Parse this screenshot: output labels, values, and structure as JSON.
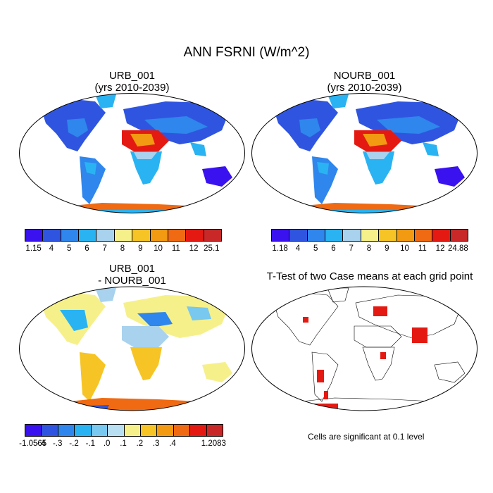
{
  "title": "ANN FSRNI (W/m^2)",
  "panels": {
    "p1": {
      "title": "URB_001",
      "subtitle": "(yrs 2010-2039)"
    },
    "p2": {
      "title": "NOURB_001",
      "subtitle": "(yrs 2010-2039)"
    },
    "p3": {
      "title": "URB_001",
      "subtitle": "- NOURB_001"
    },
    "p4": {
      "title": "T-Test of two Case means at each grid point"
    }
  },
  "colorbar1": {
    "colors": [
      "#3a12f0",
      "#2f55e0",
      "#2f86ec",
      "#2ab3f2",
      "#a8d2ee",
      "#f6f08a",
      "#f6c424",
      "#f29a12",
      "#ef6a12",
      "#e41a12",
      "#c82828"
    ],
    "labels": [
      "1.15",
      "4",
      "5",
      "6",
      "7",
      "8",
      "9",
      "10",
      "11",
      "12",
      "25.1"
    ]
  },
  "colorbar2": {
    "colors": [
      "#3a12f0",
      "#2f55e0",
      "#2f86ec",
      "#2ab3f2",
      "#a8d2ee",
      "#f6f08a",
      "#f6c424",
      "#f29a12",
      "#ef6a12",
      "#e41a12",
      "#c82828"
    ],
    "labels": [
      "1.18",
      "4",
      "5",
      "6",
      "7",
      "8",
      "9",
      "10",
      "11",
      "12",
      "24.88"
    ]
  },
  "colorbar3": {
    "colors": [
      "#3a12f0",
      "#2f55e0",
      "#2f86ec",
      "#2ab3f2",
      "#78c8f0",
      "#b8dff2",
      "#f6f08a",
      "#f6c424",
      "#f29a12",
      "#ef6a12",
      "#e41a12",
      "#c82828"
    ],
    "labels": [
      "-1.0565",
      "-.4",
      "-.3",
      "-.2",
      "-.1",
      ".0",
      ".1",
      ".2",
      ".3",
      ".4",
      "1.2083"
    ]
  },
  "note": "Cells are significant at 0.1 level"
}
